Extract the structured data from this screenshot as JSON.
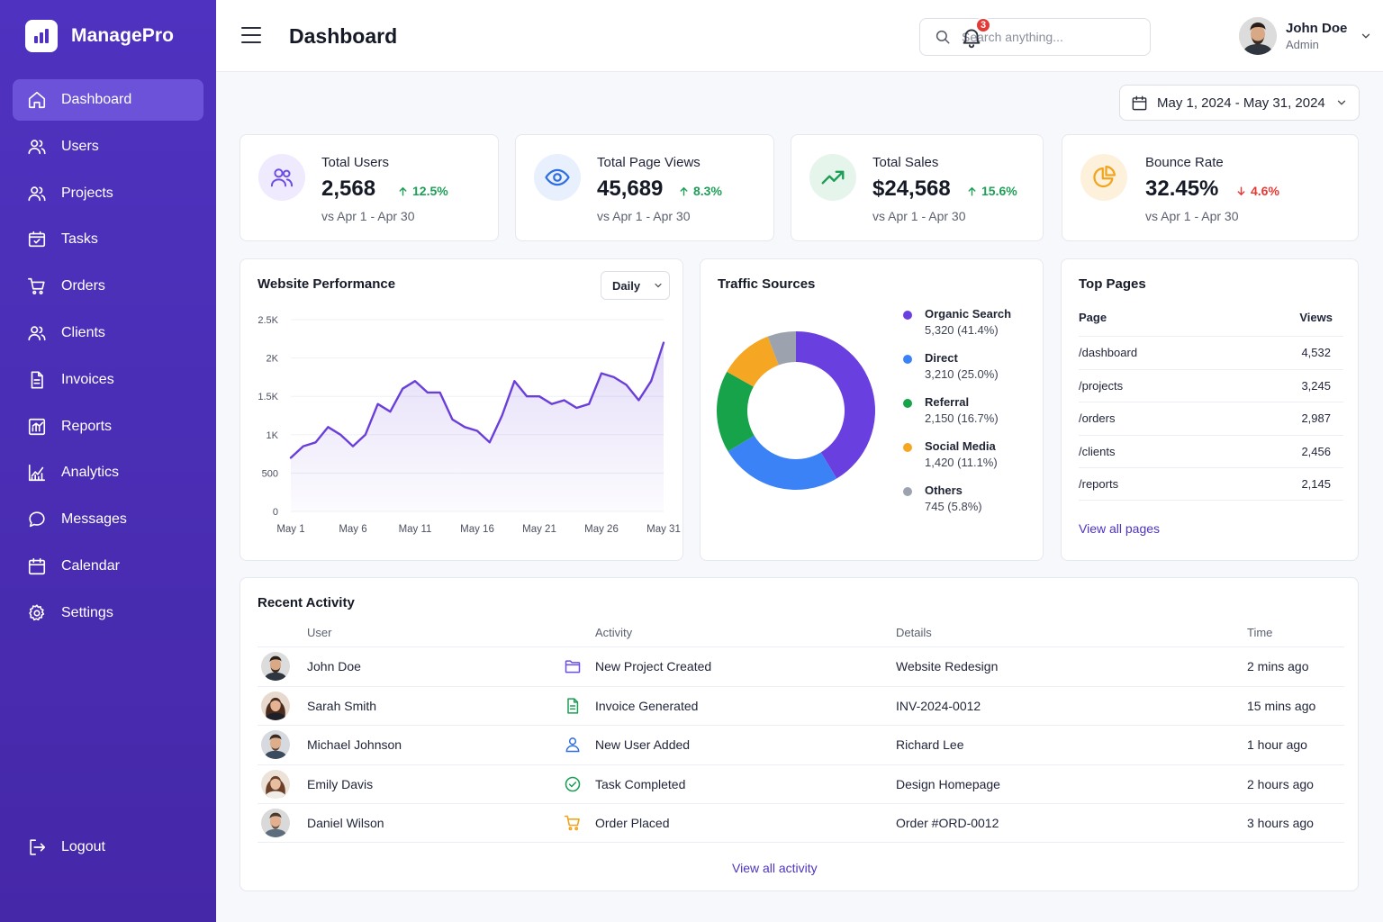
{
  "app": {
    "name": "ManagePro"
  },
  "sidebar": {
    "items": [
      {
        "label": "Dashboard",
        "icon": "home-icon",
        "active": true
      },
      {
        "label": "Users",
        "icon": "users-icon"
      },
      {
        "label": "Projects",
        "icon": "projects-icon"
      },
      {
        "label": "Tasks",
        "icon": "tasks-icon"
      },
      {
        "label": "Orders",
        "icon": "cart-icon"
      },
      {
        "label": "Clients",
        "icon": "clients-icon"
      },
      {
        "label": "Invoices",
        "icon": "invoice-icon"
      },
      {
        "label": "Reports",
        "icon": "reports-icon"
      },
      {
        "label": "Analytics",
        "icon": "analytics-icon"
      },
      {
        "label": "Messages",
        "icon": "message-icon"
      },
      {
        "label": "Calendar",
        "icon": "calendar-icon"
      },
      {
        "label": "Settings",
        "icon": "gear-icon"
      }
    ],
    "logout": "Logout"
  },
  "header": {
    "title": "Dashboard",
    "search_placeholder": "Search anything...",
    "notifications": "3",
    "user": {
      "name": "John Doe",
      "role": "Admin"
    }
  },
  "date_range": "May 1, 2024 - May 31, 2024",
  "stats": [
    {
      "label": "Total Users",
      "value": "2,568",
      "change": "12.5%",
      "direction": "up",
      "sub": "vs Apr 1 - Apr 30",
      "icon": "users-icon",
      "color": "#6b4ee6"
    },
    {
      "label": "Total Page Views",
      "value": "45,689",
      "change": "8.3%",
      "direction": "up",
      "sub": "vs Apr 1 - Apr 30",
      "icon": "eye-icon",
      "color": "#2f6fe0"
    },
    {
      "label": "Total Sales",
      "value": "$24,568",
      "change": "15.6%",
      "direction": "up",
      "sub": "vs Apr 1 - Apr 30",
      "icon": "trend-up-icon",
      "color": "#1e9e57"
    },
    {
      "label": "Bounce Rate",
      "value": "32.45%",
      "change": "4.6%",
      "direction": "down",
      "sub": "vs Apr 1 - Apr 30",
      "icon": "pie-chart-icon",
      "color": "#f2a41c"
    }
  ],
  "performance": {
    "title": "Website Performance",
    "period": "Daily",
    "chart_data": {
      "type": "area",
      "x": [
        "May 1",
        "May 2",
        "May 3",
        "May 4",
        "May 5",
        "May 6",
        "May 7",
        "May 8",
        "May 9",
        "May 10",
        "May 11",
        "May 12",
        "May 13",
        "May 14",
        "May 15",
        "May 16",
        "May 17",
        "May 18",
        "May 19",
        "May 20",
        "May 21",
        "May 22",
        "May 23",
        "May 24",
        "May 25",
        "May 26",
        "May 27",
        "May 28",
        "May 29",
        "May 30",
        "May 31"
      ],
      "values": [
        700,
        850,
        900,
        1100,
        1000,
        850,
        1000,
        1400,
        1300,
        1600,
        1700,
        1550,
        1550,
        1200,
        1100,
        1050,
        900,
        1250,
        1700,
        1500,
        1500,
        1400,
        1450,
        1350,
        1400,
        1800,
        1750,
        1650,
        1450,
        1700,
        2200
      ],
      "xticks": [
        "May 1",
        "May 6",
        "May 11",
        "May 16",
        "May 21",
        "May 26",
        "May 31"
      ],
      "yticks": [
        "0",
        "500",
        "1K",
        "1.5K",
        "2K",
        "2.5K"
      ],
      "ylim": [
        0,
        2500
      ],
      "color": "#6a3fd9"
    }
  },
  "traffic": {
    "title": "Traffic Sources",
    "chart_data": {
      "type": "pie",
      "slices": [
        {
          "name": "Organic Search",
          "value": 5320,
          "label": "5,320 (41.4%)",
          "color": "#6a3fe0"
        },
        {
          "name": "Direct",
          "value": 3210,
          "label": "3,210 (25.0%)",
          "color": "#3b82f6"
        },
        {
          "name": "Referral",
          "value": 2150,
          "label": "2,150 (16.7%)",
          "color": "#16a34a"
        },
        {
          "name": "Social Media",
          "value": 1420,
          "label": "1,420 (11.1%)",
          "color": "#f5a623"
        },
        {
          "name": "Others",
          "value": 745,
          "label": "745 (5.8%)",
          "color": "#9ca3af"
        }
      ]
    }
  },
  "top_pages": {
    "title": "Top Pages",
    "col_page": "Page",
    "col_views": "Views",
    "rows": [
      {
        "page": "/dashboard",
        "views": "4,532"
      },
      {
        "page": "/projects",
        "views": "3,245"
      },
      {
        "page": "/orders",
        "views": "2,987"
      },
      {
        "page": "/clients",
        "views": "2,456"
      },
      {
        "page": "/reports",
        "views": "2,145"
      }
    ],
    "link": "View all pages"
  },
  "activity": {
    "title": "Recent Activity",
    "cols": {
      "user": "User",
      "activity": "Activity",
      "details": "Details",
      "time": "Time"
    },
    "rows": [
      {
        "user": "John Doe",
        "activity": "New Project Created",
        "details": "Website Redesign",
        "time": "2 mins ago",
        "icon": "folder-icon",
        "color": "#6b4ee6"
      },
      {
        "user": "Sarah Smith",
        "activity": "Invoice Generated",
        "details": "INV-2024-0012",
        "time": "15 mins ago",
        "icon": "document-icon",
        "color": "#1e9e57"
      },
      {
        "user": "Michael Johnson",
        "activity": "New User Added",
        "details": "Richard Lee",
        "time": "1 hour ago",
        "icon": "user-icon",
        "color": "#2f6fe0"
      },
      {
        "user": "Emily Davis",
        "activity": "Task Completed",
        "details": "Design Homepage",
        "time": "2 hours ago",
        "icon": "check-circle-icon",
        "color": "#1e9e57"
      },
      {
        "user": "Daniel Wilson",
        "activity": "Order Placed",
        "details": "Order #ORD-0012",
        "time": "3 hours ago",
        "icon": "cart-icon",
        "color": "#f2a41c"
      }
    ],
    "link": "View all activity"
  }
}
